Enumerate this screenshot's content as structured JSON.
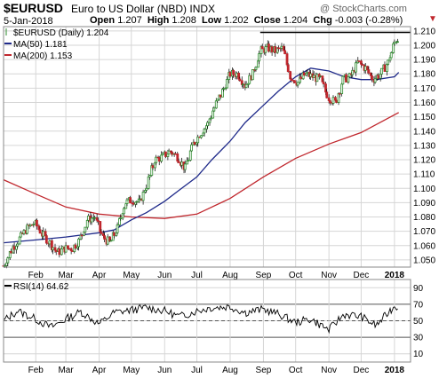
{
  "header": {
    "symbol": "$EURUSD",
    "description": "Euro to US Dollar (NBD) INDX",
    "date": "5-Jan-2018",
    "copyright": "@ StockCharts.com",
    "open_label": "Open",
    "open": "1.207",
    "high_label": "High",
    "high": "1.208",
    "low_label": "Low",
    "low": "1.202",
    "close_label": "Close",
    "close": "1.204",
    "chg_label": "Chg",
    "chg": "-0.003 (-0.28%)"
  },
  "colors": {
    "candle_up": "#2e8b2e",
    "candle_down": "#c0272d",
    "ma50": "#1f2a8a",
    "ma200": "#c0272d",
    "rsi": "#000000",
    "grid": "#d6d6d6",
    "resistance": "#000000",
    "down_arrow": "#c0272d"
  },
  "chart_data": [
    {
      "type": "line",
      "subtype": "candlestick",
      "legend": [
        {
          "key": "price",
          "label": "$EURUSD (Daily) 1.204"
        },
        {
          "key": "ma50",
          "label": "MA(50) 1.181"
        },
        {
          "key": "ma200",
          "label": "MA(200) 1.153"
        }
      ],
      "y_ticks": [
        "1.050",
        "1.060",
        "1.070",
        "1.080",
        "1.090",
        "1.100",
        "1.110",
        "1.120",
        "1.130",
        "1.140",
        "1.150",
        "1.160",
        "1.170",
        "1.180",
        "1.190",
        "1.200",
        "1.210"
      ],
      "ylim": [
        1.045,
        1.213
      ],
      "x_ticks": [
        {
          "label": "Feb",
          "date": "2017-02-01"
        },
        {
          "label": "Mar",
          "date": "2017-03-01"
        },
        {
          "label": "Apr",
          "date": "2017-04-01"
        },
        {
          "label": "May",
          "date": "2017-05-01"
        },
        {
          "label": "Jun",
          "date": "2017-06-01"
        },
        {
          "label": "Jul",
          "date": "2017-07-01"
        },
        {
          "label": "Aug",
          "date": "2017-08-01"
        },
        {
          "label": "Sep",
          "date": "2017-09-01"
        },
        {
          "label": "Oct",
          "date": "2017-10-01"
        },
        {
          "label": "Nov",
          "date": "2017-11-01"
        },
        {
          "label": "Dec",
          "date": "2017-12-01"
        },
        {
          "label": "2018",
          "date": "2018-01-01",
          "bold": true
        }
      ],
      "xlim": [
        "2017-01-02",
        "2018-01-16"
      ],
      "resistance_line": {
        "y": 1.209,
        "from": "2017-08-29",
        "to": "2018-01-16"
      },
      "series": [
        {
          "name": "$EURUSD",
          "points": [
            [
              "2017-01-02",
              1.046
            ],
            [
              "2017-01-10",
              1.058
            ],
            [
              "2017-01-17",
              1.065
            ],
            [
              "2017-01-24",
              1.072
            ],
            [
              "2017-01-31",
              1.076
            ],
            [
              "2017-02-07",
              1.068
            ],
            [
              "2017-02-14",
              1.062
            ],
            [
              "2017-02-21",
              1.055
            ],
            [
              "2017-02-28",
              1.058
            ],
            [
              "2017-03-07",
              1.058
            ],
            [
              "2017-03-14",
              1.064
            ],
            [
              "2017-03-21",
              1.078
            ],
            [
              "2017-03-28",
              1.08
            ],
            [
              "2017-04-04",
              1.066
            ],
            [
              "2017-04-11",
              1.062
            ],
            [
              "2017-04-18",
              1.072
            ],
            [
              "2017-04-25",
              1.09
            ],
            [
              "2017-05-02",
              1.092
            ],
            [
              "2017-05-09",
              1.09
            ],
            [
              "2017-05-16",
              1.104
            ],
            [
              "2017-05-23",
              1.12
            ],
            [
              "2017-05-30",
              1.122
            ],
            [
              "2017-06-06",
              1.126
            ],
            [
              "2017-06-13",
              1.122
            ],
            [
              "2017-06-20",
              1.114
            ],
            [
              "2017-06-27",
              1.13
            ],
            [
              "2017-07-04",
              1.138
            ],
            [
              "2017-07-11",
              1.145
            ],
            [
              "2017-07-18",
              1.158
            ],
            [
              "2017-07-25",
              1.168
            ],
            [
              "2017-08-01",
              1.18
            ],
            [
              "2017-08-08",
              1.18
            ],
            [
              "2017-08-15",
              1.172
            ],
            [
              "2017-08-22",
              1.18
            ],
            [
              "2017-08-29",
              1.196
            ],
            [
              "2017-09-05",
              1.198
            ],
            [
              "2017-09-12",
              1.196
            ],
            [
              "2017-09-19",
              1.198
            ],
            [
              "2017-09-26",
              1.178
            ],
            [
              "2017-10-03",
              1.174
            ],
            [
              "2017-10-10",
              1.18
            ],
            [
              "2017-10-17",
              1.178
            ],
            [
              "2017-10-24",
              1.176
            ],
            [
              "2017-10-31",
              1.164
            ],
            [
              "2017-11-07",
              1.16
            ],
            [
              "2017-11-14",
              1.176
            ],
            [
              "2017-11-21",
              1.178
            ],
            [
              "2017-11-28",
              1.188
            ],
            [
              "2017-12-05",
              1.184
            ],
            [
              "2017-12-12",
              1.176
            ],
            [
              "2017-12-19",
              1.18
            ],
            [
              "2017-12-26",
              1.188
            ],
            [
              "2018-01-02",
              1.204
            ],
            [
              "2018-01-05",
              1.204
            ]
          ]
        },
        {
          "name": "MA(50)",
          "points": [
            [
              "2017-01-02",
              1.062
            ],
            [
              "2017-02-01",
              1.064
            ],
            [
              "2017-03-01",
              1.066
            ],
            [
              "2017-04-01",
              1.069
            ],
            [
              "2017-04-15",
              1.071
            ],
            [
              "2017-05-01",
              1.078
            ],
            [
              "2017-05-15",
              1.083
            ],
            [
              "2017-06-01",
              1.091
            ],
            [
              "2017-06-15",
              1.099
            ],
            [
              "2017-07-01",
              1.108
            ],
            [
              "2017-07-15",
              1.12
            ],
            [
              "2017-08-01",
              1.133
            ],
            [
              "2017-08-15",
              1.146
            ],
            [
              "2017-09-01",
              1.158
            ],
            [
              "2017-09-15",
              1.168
            ],
            [
              "2017-10-01",
              1.178
            ],
            [
              "2017-10-15",
              1.184
            ],
            [
              "2017-11-01",
              1.182
            ],
            [
              "2017-11-15",
              1.178
            ],
            [
              "2017-12-01",
              1.176
            ],
            [
              "2017-12-15",
              1.176
            ],
            [
              "2018-01-01",
              1.178
            ],
            [
              "2018-01-05",
              1.181
            ]
          ]
        },
        {
          "name": "MA(200)",
          "points": [
            [
              "2017-01-02",
              1.106
            ],
            [
              "2017-02-01",
              1.096
            ],
            [
              "2017-03-01",
              1.087
            ],
            [
              "2017-04-01",
              1.082
            ],
            [
              "2017-05-01",
              1.08
            ],
            [
              "2017-06-01",
              1.079
            ],
            [
              "2017-07-01",
              1.082
            ],
            [
              "2017-08-01",
              1.093
            ],
            [
              "2017-09-01",
              1.108
            ],
            [
              "2017-10-01",
              1.121
            ],
            [
              "2017-11-01",
              1.131
            ],
            [
              "2017-12-01",
              1.139
            ],
            [
              "2018-01-05",
              1.153
            ]
          ]
        }
      ]
    },
    {
      "type": "line",
      "legend": [
        {
          "key": "rsi",
          "label": "RSI(14) 64.62"
        }
      ],
      "y_ticks": [
        "10",
        "30",
        "50",
        "70",
        "90"
      ],
      "ylim": [
        0,
        100
      ],
      "bands": [
        30,
        70
      ],
      "center": 50,
      "series": [
        {
          "name": "RSI(14)",
          "points": [
            [
              "2017-01-02",
              50
            ],
            [
              "2017-01-15",
              62
            ],
            [
              "2017-02-01",
              52
            ],
            [
              "2017-02-15",
              42
            ],
            [
              "2017-03-01",
              52
            ],
            [
              "2017-03-15",
              61
            ],
            [
              "2017-04-01",
              46
            ],
            [
              "2017-04-15",
              60
            ],
            [
              "2017-05-01",
              63
            ],
            [
              "2017-05-15",
              66
            ],
            [
              "2017-06-01",
              62
            ],
            [
              "2017-06-15",
              55
            ],
            [
              "2017-07-01",
              62
            ],
            [
              "2017-07-15",
              66
            ],
            [
              "2017-08-01",
              67
            ],
            [
              "2017-08-15",
              60
            ],
            [
              "2017-09-01",
              64
            ],
            [
              "2017-09-15",
              58
            ],
            [
              "2017-10-01",
              48
            ],
            [
              "2017-10-15",
              52
            ],
            [
              "2017-11-01",
              39
            ],
            [
              "2017-11-15",
              58
            ],
            [
              "2017-12-01",
              55
            ],
            [
              "2017-12-15",
              44
            ],
            [
              "2018-01-01",
              68
            ],
            [
              "2018-01-05",
              64.62
            ]
          ]
        }
      ]
    }
  ]
}
